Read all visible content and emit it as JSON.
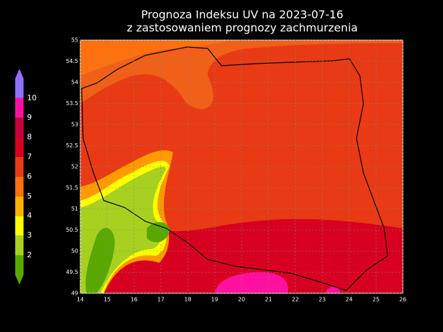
{
  "title": [
    "Prognoza Indeksu UV na 2023-07-16",
    "z zastosowaniem prognozy zachmurzenia"
  ],
  "xlim": [
    14,
    26
  ],
  "ylim": [
    49,
    55
  ],
  "xticks": [
    14,
    15,
    16,
    17,
    18,
    19,
    20,
    21,
    22,
    23,
    24,
    25,
    26
  ],
  "yticks": [
    49,
    49.5,
    50,
    50.5,
    51,
    51.5,
    52,
    52.5,
    53,
    53.5,
    54,
    54.5,
    55
  ],
  "grid": true,
  "legend": {
    "levels": [
      2,
      3,
      4,
      5,
      6,
      7,
      8,
      9,
      10
    ],
    "colors": [
      "#58a800",
      "#a8d020",
      "#ffff00",
      "#ffb000",
      "#ff7010",
      "#e83a14",
      "#d80020",
      "#c8003c",
      "#ff10a0",
      "#9070ff"
    ]
  }
}
